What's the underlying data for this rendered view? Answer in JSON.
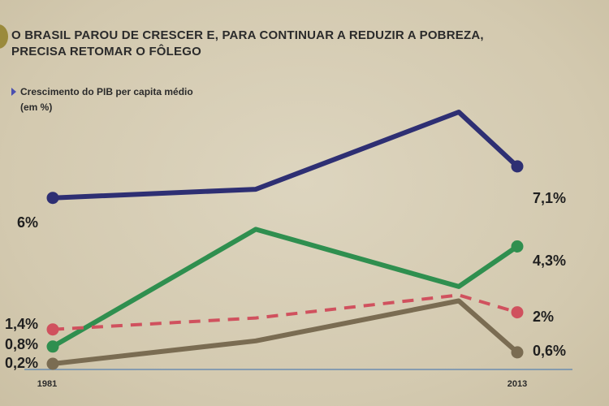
{
  "title_lines": [
    "O BRASIL PAROU DE CRESCER E, PARA CONTINUAR A REDUZIR A POBREZA,",
    "PRECISA RETOMAR O FÔLEGO"
  ],
  "subtitle": "Crescimento do PIB per capita médio",
  "unit": "(em %)",
  "colors": {
    "background": "#d6cdb5",
    "navy": "#2e2f73",
    "green": "#2f8f4f",
    "red": "#d0515e",
    "brown": "#7a6c52",
    "axis": "#6c8db0"
  },
  "chart_data": {
    "type": "line",
    "x_labels": [
      "1981",
      "2013"
    ],
    "ylim": [
      0,
      9
    ],
    "grid": false,
    "legend": "none",
    "series": [
      {
        "color": "#2e2f73",
        "style": "solid",
        "values": [
          6.0,
          6.3,
          9.0,
          7.1
        ],
        "start_label": "6%",
        "end_label": "7,1%"
      },
      {
        "color": "#2f8f4f",
        "style": "solid",
        "values": [
          0.8,
          4.9,
          2.9,
          4.3
        ],
        "start_label": "0,8%",
        "end_label": "4,3%"
      },
      {
        "color": "#d0515e",
        "style": "dashed",
        "values": [
          1.4,
          1.8,
          2.6,
          2.0
        ],
        "start_label": "1,4%",
        "end_label": "2%"
      },
      {
        "color": "#7a6c52",
        "style": "solid",
        "values": [
          0.2,
          1.0,
          2.4,
          0.6
        ],
        "start_label": "0,2%",
        "end_label": "0,6%"
      }
    ]
  }
}
